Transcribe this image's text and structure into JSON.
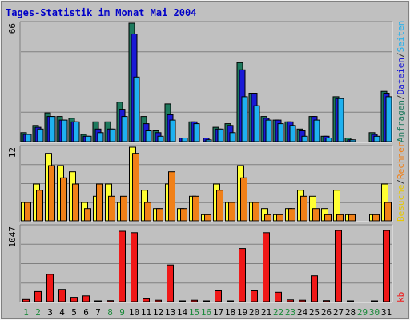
{
  "chart_data": {
    "title": "Tages-Statistik im Monat Mai 2004",
    "days": [
      1,
      2,
      3,
      4,
      5,
      6,
      7,
      8,
      9,
      10,
      11,
      12,
      13,
      14,
      15,
      16,
      17,
      18,
      19,
      20,
      21,
      22,
      23,
      24,
      25,
      26,
      27,
      28,
      29,
      30,
      31
    ],
    "weekend_days": [
      1,
      2,
      8,
      9,
      15,
      16,
      22,
      23,
      29,
      30
    ],
    "panels": [
      {
        "type": "bar",
        "ymax_label": "66",
        "ymax": 66,
        "series": [
          {
            "name": "Anfragen",
            "color": "#1e7a5e",
            "values": [
              5,
              9,
              16,
              14,
              13,
              4,
              11,
              11,
              22,
              66,
              14,
              6,
              21,
              0,
              11,
              0,
              8,
              10,
              44,
              27,
              14,
              12,
              11,
              7,
              14,
              3,
              25,
              2,
              0,
              5,
              28
            ]
          },
          {
            "name": "Dateien",
            "color": "#1a1ad6",
            "values": [
              4,
              8,
              14,
              12,
              11,
              3,
              7,
              7,
              18,
              60,
              10,
              5,
              15,
              2,
              11,
              2,
              7,
              9,
              40,
              27,
              13,
              12,
              11,
              6,
              14,
              3,
              24,
              1,
              0,
              4,
              27
            ]
          },
          {
            "name": "Seiten",
            "color": "#1eb1f0",
            "values": [
              4,
              7,
              14,
              12,
              11,
              3,
              5,
              7,
              14,
              36,
              6,
              3,
              12,
              2,
              10,
              1,
              7,
              5,
              25,
              20,
              12,
              10,
              9,
              3,
              12,
              2,
              24,
              1,
              0,
              3,
              25
            ]
          }
        ]
      },
      {
        "type": "bar",
        "ymax_label": "12",
        "ymax": 12,
        "series": [
          {
            "name": "Besuche",
            "color": "#ffff33",
            "values": [
              3,
              6,
              11,
              9,
              8,
              3,
              4,
              6,
              3,
              12,
              5,
              2,
              6,
              2,
              4,
              1,
              6,
              3,
              9,
              3,
              2,
              1,
              2,
              5,
              4,
              2,
              5,
              1,
              0,
              1,
              6
            ]
          },
          {
            "name": "Rechner",
            "color": "#f08018",
            "values": [
              3,
              5,
              9,
              7,
              6,
              2,
              6,
              4,
              4,
              11,
              3,
              2,
              8,
              2,
              4,
              1,
              5,
              3,
              7,
              3,
              1,
              1,
              2,
              4,
              2,
              1,
              1,
              1,
              0,
              1,
              3
            ]
          }
        ]
      },
      {
        "type": "bar",
        "ymax_label": "1047",
        "ymax": 1047,
        "series": [
          {
            "name": "kb",
            "color": "#f01818",
            "values": [
              30,
              140,
              380,
              170,
              60,
              80,
              10,
              15,
              980,
              960,
              40,
              20,
              510,
              10,
              20,
              10,
              150,
              10,
              740,
              150,
              960,
              130,
              25,
              20,
              360,
              15,
              990,
              10,
              0,
              10,
              990
            ]
          }
        ]
      }
    ],
    "right_labels": {
      "top": [
        {
          "text": "Anfragen",
          "color": "#1e7a5e"
        },
        {
          "text": "/",
          "color": "#303030"
        },
        {
          "text": "Dateien",
          "color": "#1a1ad6"
        },
        {
          "text": "/",
          "color": "#303030"
        },
        {
          "text": "Seiten",
          "color": "#1eb1f0"
        }
      ],
      "middle": [
        {
          "text": "Besuche",
          "color": "#e8c800"
        },
        {
          "text": "/",
          "color": "#303030"
        },
        {
          "text": "Rechner",
          "color": "#f08018"
        }
      ],
      "bottom": [
        {
          "text": "kb",
          "color": "#f01818"
        }
      ]
    }
  }
}
